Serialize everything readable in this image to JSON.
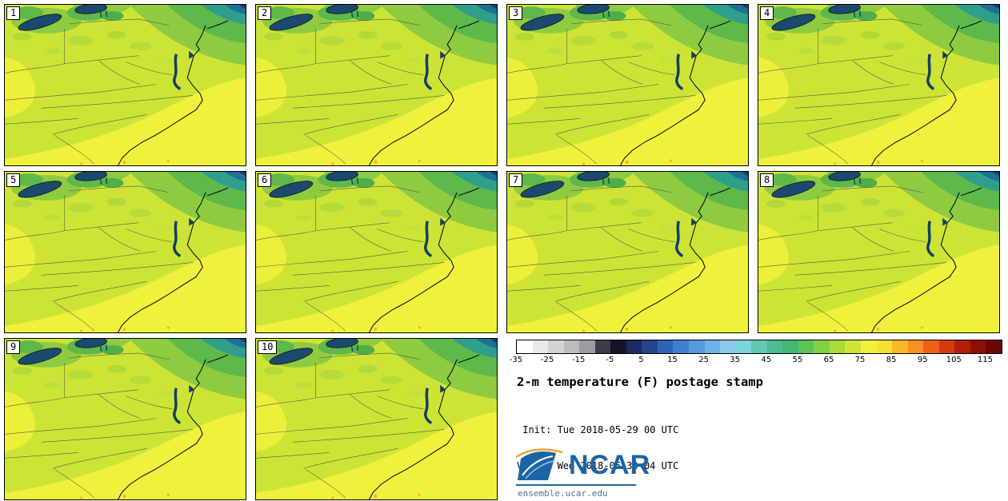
{
  "title": "2-m temperature (F) postage stamp",
  "init_line": " Init: Tue 2018-05-29 00 UTC",
  "valid_line": "Valid: Wed 2018-05-30 04 UTC",
  "panels": [
    "1",
    "2",
    "3",
    "4",
    "5",
    "6",
    "7",
    "8",
    "9",
    "10"
  ],
  "colorbar": {
    "ticks": [
      "-35",
      "-25",
      "-15",
      "-5",
      "5",
      "15",
      "25",
      "35",
      "45",
      "55",
      "65",
      "75",
      "85",
      "95",
      "105",
      "115"
    ],
    "colors": [
      "#ffffff",
      "#eaeaea",
      "#d4d4d4",
      "#bcbcc0",
      "#9c9ca4",
      "#3c3c48",
      "#14142a",
      "#1c2a5e",
      "#24448e",
      "#2f62b4",
      "#3f80d0",
      "#569ade",
      "#70b2e6",
      "#8cc8e8",
      "#7ed4dc",
      "#62c8b4",
      "#4cbc92",
      "#44b871",
      "#5cc456",
      "#84d044",
      "#aadc3a",
      "#cfe636",
      "#f0f03c",
      "#f8e032",
      "#f8b82a",
      "#f89022",
      "#f06018",
      "#d83810",
      "#b02008",
      "#8c1004",
      "#6a0802"
    ]
  },
  "logo": {
    "text": "NCAR",
    "site": "ensemble.ucar.edu",
    "blue": "#1b65a7",
    "arc_orange": "#f0a03c"
  },
  "map_palette": {
    "base_yellow_green": "#cde437",
    "warm_yellow": "#f0f13c",
    "green": "#8ecb40",
    "dark_green": "#5fb84a",
    "teal": "#2f9e8a",
    "dark_teal": "#1d6f93",
    "water_navy": "#1b4a6e",
    "hot_orange_speck": "#f5b02c"
  },
  "chart_data": {
    "type": "heatmap",
    "title": "2-m temperature (F) postage stamp",
    "init": "Tue 2018-05-29 00 UTC",
    "valid": "Wed 2018-05-30 04 UTC",
    "n_panels": 10,
    "panel_labels": [
      "1",
      "2",
      "3",
      "4",
      "5",
      "6",
      "7",
      "8",
      "9",
      "10"
    ],
    "colorbar": {
      "unit": "F",
      "tick_values": [
        -35,
        -25,
        -15,
        -5,
        5,
        15,
        25,
        35,
        45,
        55,
        65,
        75,
        85,
        95,
        105,
        115
      ],
      "segment_step": 5,
      "range": [
        -35,
        120
      ]
    },
    "field_summary": "Ten ensemble-member maps of 2-m temperature over the eastern US: mostly 70-80 F (yellow/yellow-green) across the southeast and Ohio Valley, 55-70 F (greens) over the interior northeast, coldest teal/blue-green values in the far northeast and adjacent Atlantic; Lakes Erie/Ontario and Chesapeake Bay drawn in dark navy."
  }
}
